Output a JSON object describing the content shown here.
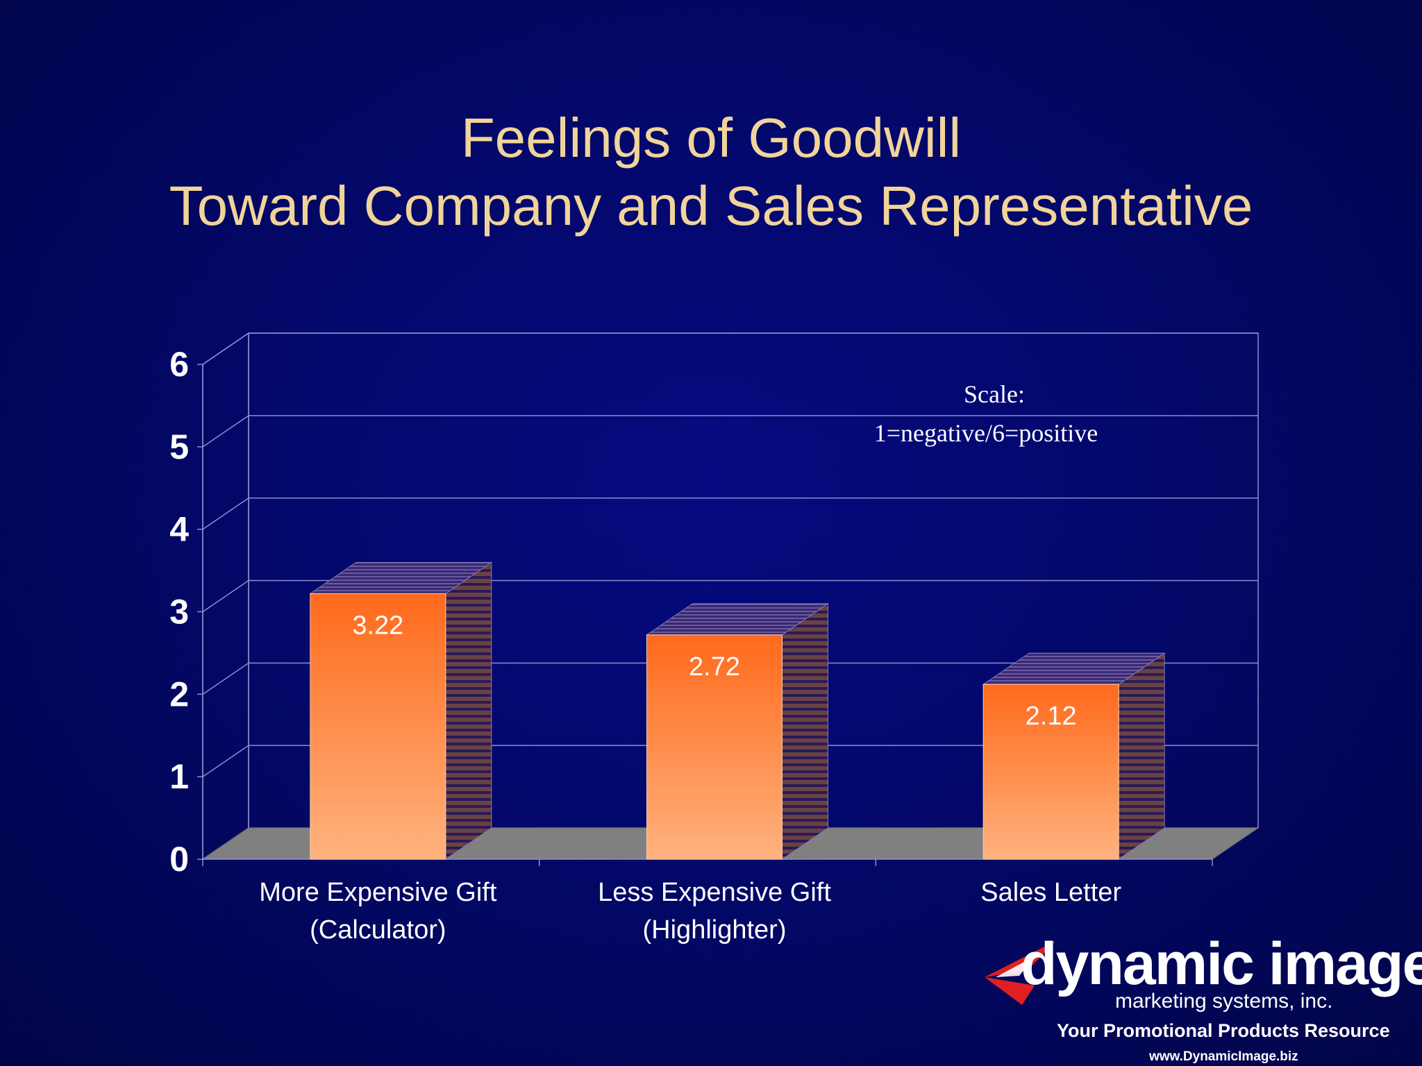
{
  "slide": {
    "title_line1": "Feelings of Goodwill",
    "title_line2": "Toward Company and Sales Representative"
  },
  "chart_data": {
    "type": "bar",
    "categories": [
      [
        "More Expensive Gift",
        "(Calculator)"
      ],
      [
        "Less Expensive Gift",
        "(Highlighter)"
      ],
      [
        "Sales Letter"
      ]
    ],
    "values": [
      3.22,
      2.72,
      2.12
    ],
    "data_labels": [
      "3.22",
      "2.72",
      "2.12"
    ],
    "ylim": [
      0,
      6
    ],
    "yticks": [
      "0",
      "1",
      "2",
      "3",
      "4",
      "5",
      "6"
    ],
    "grid": true,
    "annotation_line1": "Scale:",
    "annotation_line2": "1=negative/6=positive",
    "colors": {
      "bar_top": "#ff6a1c",
      "bar_bottom": "#ffb27f",
      "bar_side": "#5a3a3a",
      "floor": "#808080",
      "grid": "#8a8fd0",
      "text": "#ffffff"
    }
  },
  "logo": {
    "word": "dynamic image",
    "subtitle": "marketing systems, inc.",
    "tagline": "Your Promotional Products Resource",
    "url": "www.DynamicImage.biz"
  }
}
